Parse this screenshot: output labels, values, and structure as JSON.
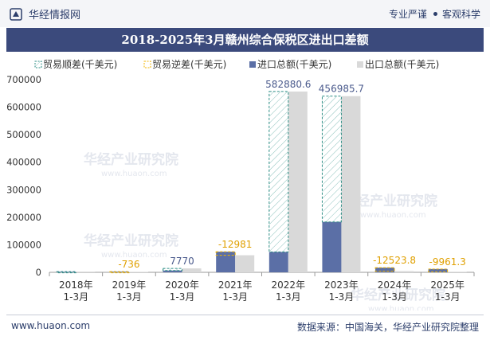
{
  "header": {
    "brand": "华经情报网",
    "tagline_left": "专业严谨",
    "tagline_right": "客观科学"
  },
  "footer": {
    "website": "www.huaon.com",
    "source": "数据来源：中国海关，华经产业研究院整理"
  },
  "watermark": {
    "text": "华经产业研究院",
    "url": "www.huaon.com"
  },
  "colors": {
    "title_bg": "#3b4a7c",
    "surplus": "#2f8f86",
    "deficit": "#f0b400",
    "import": "#5b6fa6",
    "export": "#d9d9d9",
    "surplus_label": "#4a5a8c",
    "deficit_label": "#e0a000"
  },
  "chart_data": {
    "type": "bar",
    "title": "2018-2025年3月赣州综合保税区进出口差额",
    "categories": [
      "2018年\n1-3月",
      "2019年\n1-3月",
      "2020年\n1-3月",
      "2021年\n1-3月",
      "2022年\n1-3月",
      "2023年\n1-3月",
      "2024年\n1-3月",
      "2025年\n1-3月"
    ],
    "legend": [
      "贸易顺差(千美元)",
      "贸易逆差(千美元)",
      "进口总额(千美元)",
      "出口总额(千美元)"
    ],
    "ylim": [
      0,
      700000
    ],
    "yticks": [
      0,
      100000,
      200000,
      300000,
      400000,
      500000,
      600000,
      700000
    ],
    "series": [
      {
        "name": "进口总额(千美元)",
        "values": [
          1500,
          2400,
          6500,
          75000,
          74000,
          183000,
          17000,
          12000
        ]
      },
      {
        "name": "出口总额(千美元)",
        "values": [
          2500,
          1700,
          14270,
          62000,
          656900,
          640000,
          4500,
          2000
        ]
      }
    ],
    "balance": [
      1000,
      -736,
      7770,
      -12981,
      582880.6,
      456985.7,
      -12523.8,
      -9961.3
    ],
    "balance_labels": [
      "",
      "-736",
      "7770",
      "-12981",
      "582880.6",
      "456985.7",
      "-12523.8",
      "-9961.3"
    ]
  }
}
